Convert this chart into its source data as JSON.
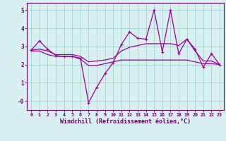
{
  "xlabel": "Windchill (Refroidissement éolien,°C)",
  "x": [
    0,
    1,
    2,
    3,
    4,
    5,
    6,
    7,
    8,
    9,
    10,
    11,
    12,
    13,
    14,
    15,
    16,
    17,
    18,
    19,
    20,
    21,
    22,
    23
  ],
  "y_line1": [
    2.8,
    3.3,
    2.85,
    2.5,
    2.45,
    2.45,
    2.35,
    -0.1,
    0.75,
    1.5,
    2.1,
    3.1,
    3.8,
    3.45,
    3.4,
    5.0,
    2.7,
    5.0,
    2.6,
    3.4,
    2.85,
    1.85,
    2.6,
    2.0
  ],
  "y_line2": [
    2.8,
    2.85,
    2.75,
    2.55,
    2.55,
    2.55,
    2.45,
    2.15,
    2.2,
    2.25,
    2.35,
    2.75,
    2.95,
    3.05,
    3.15,
    3.15,
    3.15,
    3.15,
    3.05,
    3.4,
    2.75,
    2.2,
    2.2,
    2.0
  ],
  "y_line3": [
    2.75,
    2.75,
    2.55,
    2.45,
    2.45,
    2.45,
    2.3,
    1.95,
    1.95,
    2.05,
    2.15,
    2.25,
    2.25,
    2.25,
    2.25,
    2.25,
    2.25,
    2.25,
    2.25,
    2.25,
    2.15,
    2.05,
    2.05,
    2.0
  ],
  "line_color": "#990099",
  "bg_color": "#d8f0f0",
  "grid_color": "#99cccc",
  "ylim": [
    -0.5,
    5.4
  ],
  "yticks": [
    0,
    1,
    2,
    3,
    4,
    5
  ],
  "ytick_labels": [
    "-0",
    "1",
    "2",
    "3",
    "4",
    "5"
  ]
}
